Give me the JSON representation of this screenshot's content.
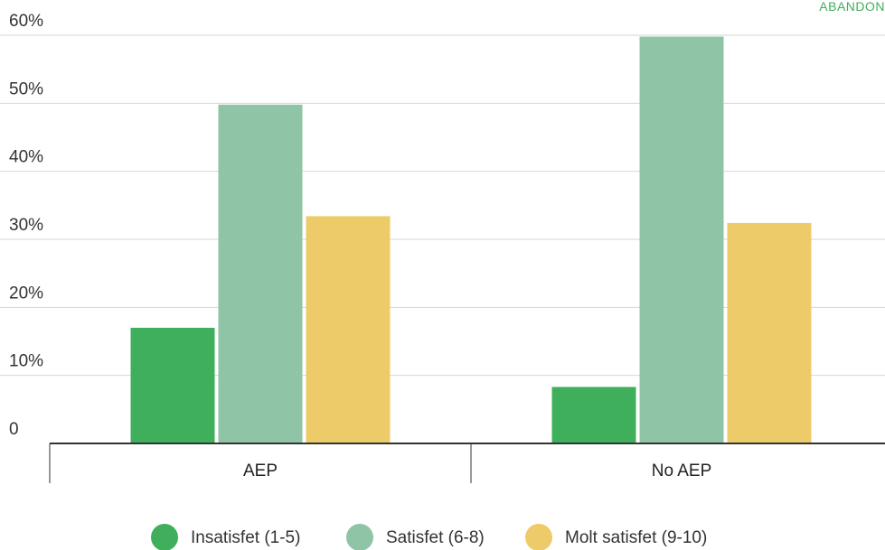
{
  "corner_text": "ABANDON",
  "chart_data": {
    "type": "bar",
    "categories": [
      "AEP",
      "No AEP"
    ],
    "series": [
      {
        "name": "Insatisfet (1-5)",
        "values": [
          17,
          8.3
        ],
        "color": "#3faf5c"
      },
      {
        "name": "Satisfet (6-8)",
        "values": [
          49.8,
          59.8
        ],
        "color": "#8fc4a6"
      },
      {
        "name": "Molt satisfet (9-10)",
        "values": [
          33.4,
          32.4
        ],
        "color": "#eecb69"
      }
    ],
    "y_ticks": [
      {
        "value": 0,
        "label": "0"
      },
      {
        "value": 10,
        "label": "10%"
      },
      {
        "value": 20,
        "label": "20%"
      },
      {
        "value": 30,
        "label": "30%"
      },
      {
        "value": 40,
        "label": "40%"
      },
      {
        "value": 50,
        "label": "50%"
      },
      {
        "value": 60,
        "label": "60%"
      }
    ],
    "ylim": [
      0,
      60
    ],
    "grid": true,
    "legend_position": "bottom",
    "title": "",
    "xlabel": "",
    "ylabel": ""
  }
}
